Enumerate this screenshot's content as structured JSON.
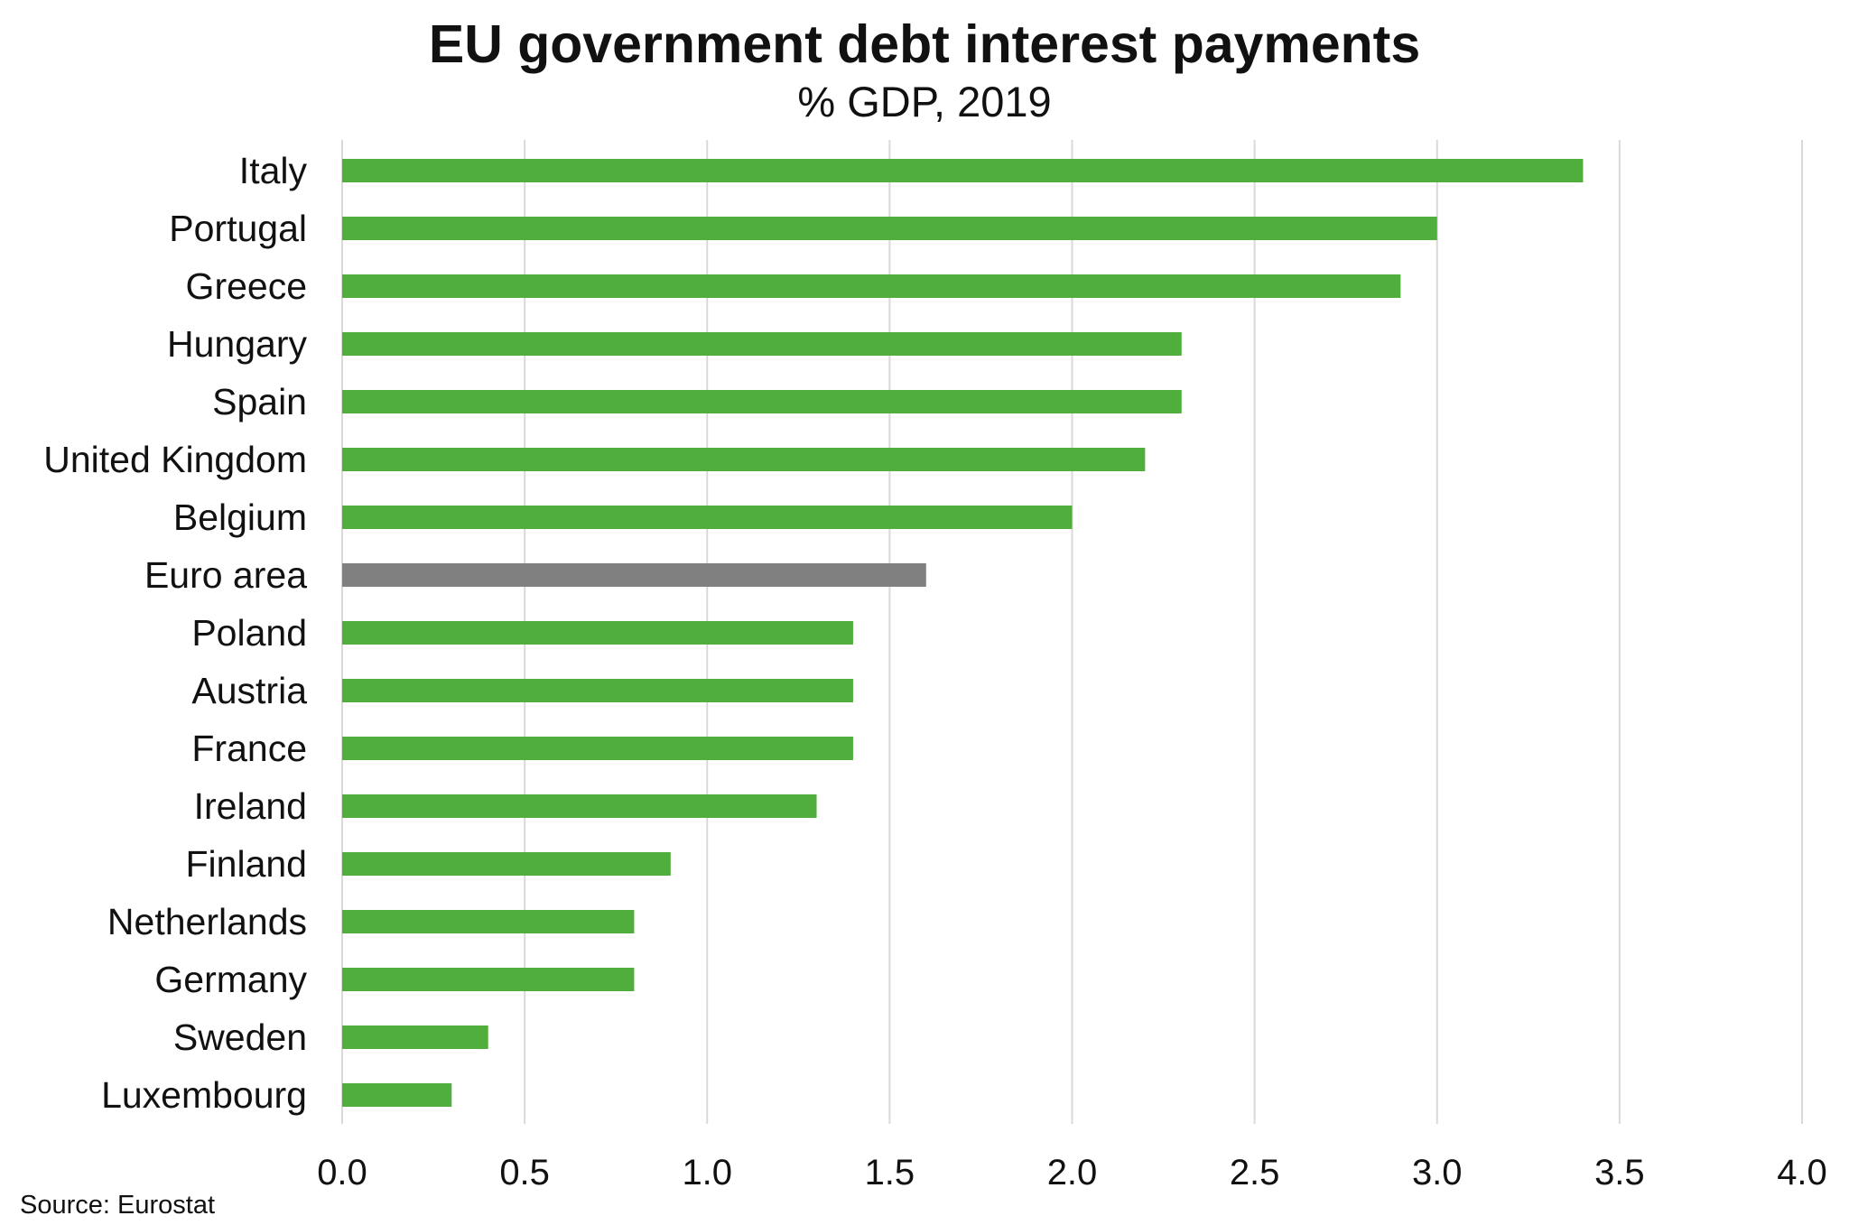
{
  "chart_data": {
    "type": "bar",
    "orientation": "horizontal",
    "title": "EU government debt interest payments",
    "subtitle": "% GDP, 2019",
    "categories": [
      "Italy",
      "Portugal",
      "Greece",
      "Hungary",
      "Spain",
      "United Kingdom",
      "Belgium",
      "Euro area",
      "Poland",
      "Austria",
      "France",
      "Ireland",
      "Finland",
      "Netherlands",
      "Germany",
      "Sweden",
      "Luxembourg"
    ],
    "values": [
      3.4,
      3.0,
      2.9,
      2.3,
      2.3,
      2.2,
      2.0,
      1.6,
      1.4,
      1.4,
      1.4,
      1.3,
      0.9,
      0.8,
      0.8,
      0.4,
      0.3
    ],
    "xlim": [
      0,
      4
    ],
    "x_ticks": [
      "0.0",
      "0.5",
      "1.0",
      "1.5",
      "2.0",
      "2.5",
      "3.0",
      "3.5",
      "4.0"
    ],
    "grid": "vertical",
    "legend": "none",
    "highlight_category": "Euro area",
    "colors": {
      "bar": "#4fae3c",
      "highlight_bar": "#808080",
      "gridline": "#d9d9d9",
      "axis": "#d9d9d9"
    },
    "source": "Source: Eurostat"
  }
}
